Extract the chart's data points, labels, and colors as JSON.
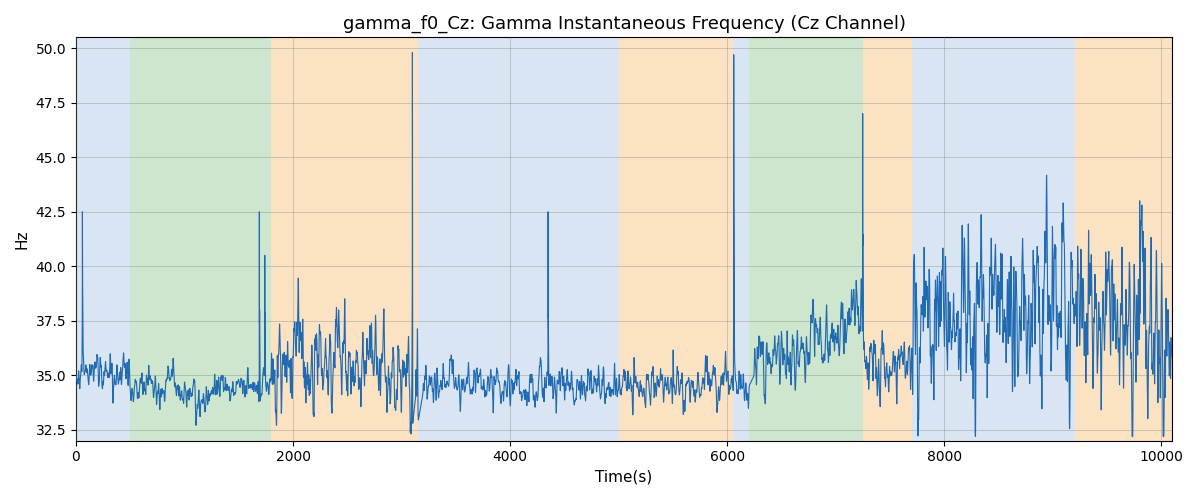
{
  "title": "gamma_f0_Cz: Gamma Instantaneous Frequency (Cz Channel)",
  "xlabel": "Time(s)",
  "ylabel": "Hz",
  "xlim": [
    0,
    10100
  ],
  "ylim": [
    32.0,
    50.5
  ],
  "yticks": [
    32.5,
    35.0,
    37.5,
    40.0,
    42.5,
    45.0,
    47.5,
    50.0
  ],
  "xticks": [
    0,
    2000,
    4000,
    6000,
    8000,
    10000
  ],
  "line_color": "#1f6ab0",
  "line_width": 0.8,
  "bg_regions": [
    {
      "start": 0,
      "end": 500,
      "color": "#aec6e8",
      "alpha": 0.45
    },
    {
      "start": 500,
      "end": 1800,
      "color": "#90c990",
      "alpha": 0.45
    },
    {
      "start": 1800,
      "end": 3150,
      "color": "#f5c07a",
      "alpha": 0.45
    },
    {
      "start": 3150,
      "end": 5000,
      "color": "#aec6e8",
      "alpha": 0.45
    },
    {
      "start": 5000,
      "end": 6050,
      "color": "#f5c07a",
      "alpha": 0.45
    },
    {
      "start": 6050,
      "end": 6200,
      "color": "#aec6e8",
      "alpha": 0.45
    },
    {
      "start": 6200,
      "end": 7250,
      "color": "#90c990",
      "alpha": 0.45
    },
    {
      "start": 7250,
      "end": 7700,
      "color": "#f5c07a",
      "alpha": 0.45
    },
    {
      "start": 7700,
      "end": 9200,
      "color": "#aec6e8",
      "alpha": 0.45
    },
    {
      "start": 9200,
      "end": 10200,
      "color": "#f5c07a",
      "alpha": 0.45
    }
  ],
  "figsize": [
    12.0,
    5.0
  ],
  "dpi": 100
}
